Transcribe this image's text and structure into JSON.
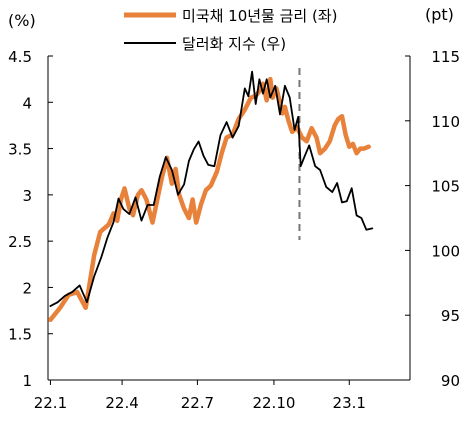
{
  "chart_data": {
    "type": "line",
    "y_left_unit": "(%)",
    "y_right_unit": "(pt)",
    "left_ticks": [
      "1",
      "1.5",
      "2",
      "2.5",
      "3",
      "3.5",
      "4",
      "4.5"
    ],
    "right_ticks": [
      "90",
      "95",
      "100",
      "105",
      "110",
      "115"
    ],
    "x_ticks": [
      {
        "label": "22.1",
        "t": 0
      },
      {
        "label": "22.4",
        "t": 59
      },
      {
        "label": "22.7",
        "t": 121
      },
      {
        "label": "22.10",
        "t": 184
      },
      {
        "label": "23.1",
        "t": 246
      }
    ],
    "ylim_left": [
      1,
      4.5
    ],
    "ylim_right": [
      90,
      115
    ],
    "xlim": [
      -2,
      296
    ],
    "grid": false,
    "legend_position": "top",
    "event_marker_t": 205,
    "series": [
      {
        "name": "미국채 10년물 금리 (좌)",
        "axis": "left",
        "color": "#E8823A",
        "x": [
          0,
          8,
          15,
          22,
          29,
          36,
          41,
          48,
          52,
          55,
          58,
          61,
          65,
          68,
          72,
          75,
          79,
          84,
          88,
          92,
          96,
          100,
          103,
          106,
          110,
          114,
          117,
          120,
          124,
          128,
          132,
          137,
          141,
          145,
          150,
          155,
          160,
          165,
          169,
          172,
          175,
          178,
          181,
          183,
          186,
          188,
          191,
          193,
          196,
          199,
          203,
          207,
          211,
          215,
          219,
          222,
          226,
          230,
          234,
          237,
          240,
          243,
          246,
          249,
          252,
          255,
          258,
          262
        ],
        "values": [
          1.65,
          1.78,
          1.92,
          1.95,
          1.78,
          2.35,
          2.6,
          2.68,
          2.8,
          2.72,
          2.95,
          3.07,
          2.85,
          2.78,
          3.0,
          3.05,
          2.95,
          2.7,
          2.95,
          3.2,
          3.4,
          3.12,
          3.28,
          3.0,
          2.85,
          2.75,
          2.95,
          2.7,
          2.9,
          3.05,
          3.1,
          3.25,
          3.45,
          3.62,
          3.65,
          3.82,
          3.92,
          4.05,
          4.07,
          4.12,
          4.2,
          4.02,
          4.25,
          4.05,
          4.15,
          4.05,
          3.88,
          3.95,
          3.8,
          3.68,
          3.73,
          3.62,
          3.58,
          3.72,
          3.62,
          3.45,
          3.5,
          3.58,
          3.75,
          3.82,
          3.85,
          3.65,
          3.52,
          3.55,
          3.45,
          3.5,
          3.5,
          3.52
        ]
      },
      {
        "name": "달러화 지수 (우)",
        "axis": "right",
        "color": "#000000",
        "x": [
          0,
          6,
          12,
          18,
          24,
          30,
          36,
          42,
          47,
          52,
          56,
          60,
          65,
          70,
          75,
          80,
          85,
          90,
          95,
          100,
          105,
          110,
          114,
          118,
          122,
          126,
          130,
          135,
          140,
          145,
          150,
          155,
          160,
          163,
          166,
          169,
          172,
          175,
          178,
          181,
          185,
          189,
          193,
          197,
          201,
          204,
          206,
          209,
          213,
          218,
          222,
          227,
          232,
          236,
          240,
          244,
          248,
          252,
          256,
          260,
          265
        ],
        "values": [
          95.7,
          96.0,
          96.5,
          96.8,
          97.3,
          96.0,
          98.0,
          99.5,
          101.0,
          102.2,
          104.0,
          103.2,
          102.8,
          104.1,
          102.3,
          103.5,
          103.5,
          105.7,
          107.2,
          106.2,
          104.3,
          105.1,
          106.9,
          107.8,
          108.4,
          107.3,
          106.6,
          106.5,
          108.9,
          109.9,
          108.7,
          109.6,
          112.5,
          111.9,
          113.8,
          111.3,
          113.2,
          112.1,
          113.2,
          111.8,
          112.7,
          110.5,
          112.7,
          111.8,
          109.3,
          110.3,
          106.5,
          107.2,
          108.1,
          106.5,
          106.2,
          104.9,
          104.5,
          105.2,
          103.7,
          103.8,
          104.8,
          102.7,
          102.5,
          101.6,
          101.7
        ]
      }
    ]
  }
}
